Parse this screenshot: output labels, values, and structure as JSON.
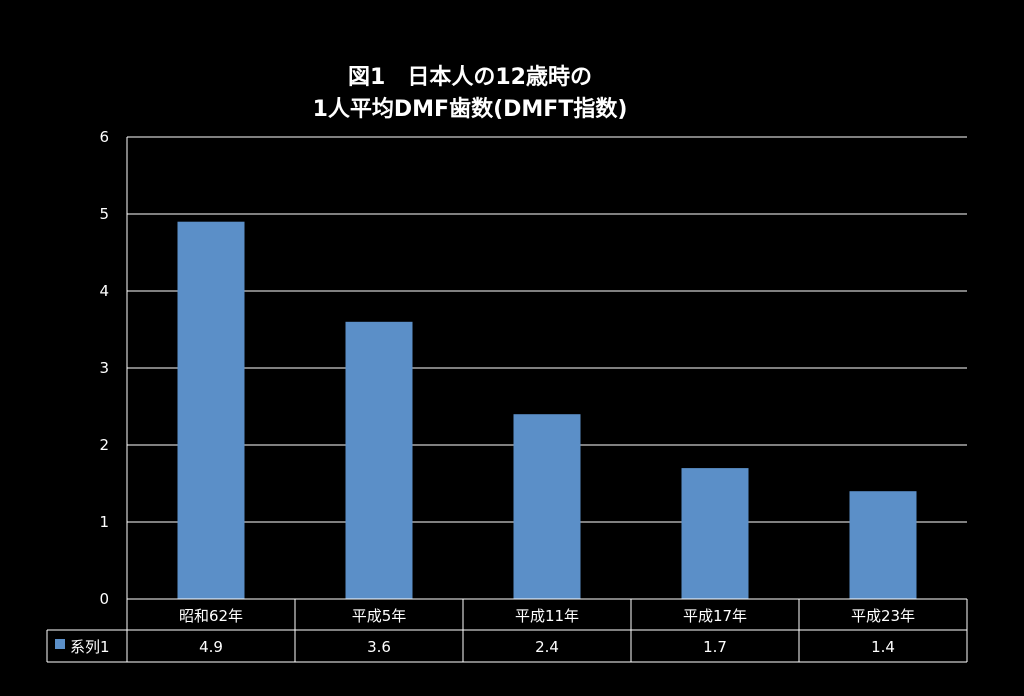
{
  "chart_data": {
    "type": "bar",
    "title": [
      "図1　日本人の12歳時の",
      "1人平均DMF歯数(DMFT指数)"
    ],
    "categories": [
      "昭和62年",
      "平成5年",
      "平成11年",
      "平成17年",
      "平成23年"
    ],
    "series": [
      {
        "name": "系列1",
        "values": [
          4.9,
          3.6,
          2.4,
          1.7,
          1.4
        ],
        "color": "#5b8fc8"
      }
    ],
    "data_table": {
      "series_label": "系列1",
      "cells": [
        "4.9",
        "3.6",
        "2.4",
        "1.7",
        "1.4"
      ]
    },
    "ylim": [
      0,
      6
    ],
    "yticks": [
      0,
      1,
      2,
      3,
      4,
      5,
      6
    ],
    "grid": true,
    "legend": "data-table"
  }
}
